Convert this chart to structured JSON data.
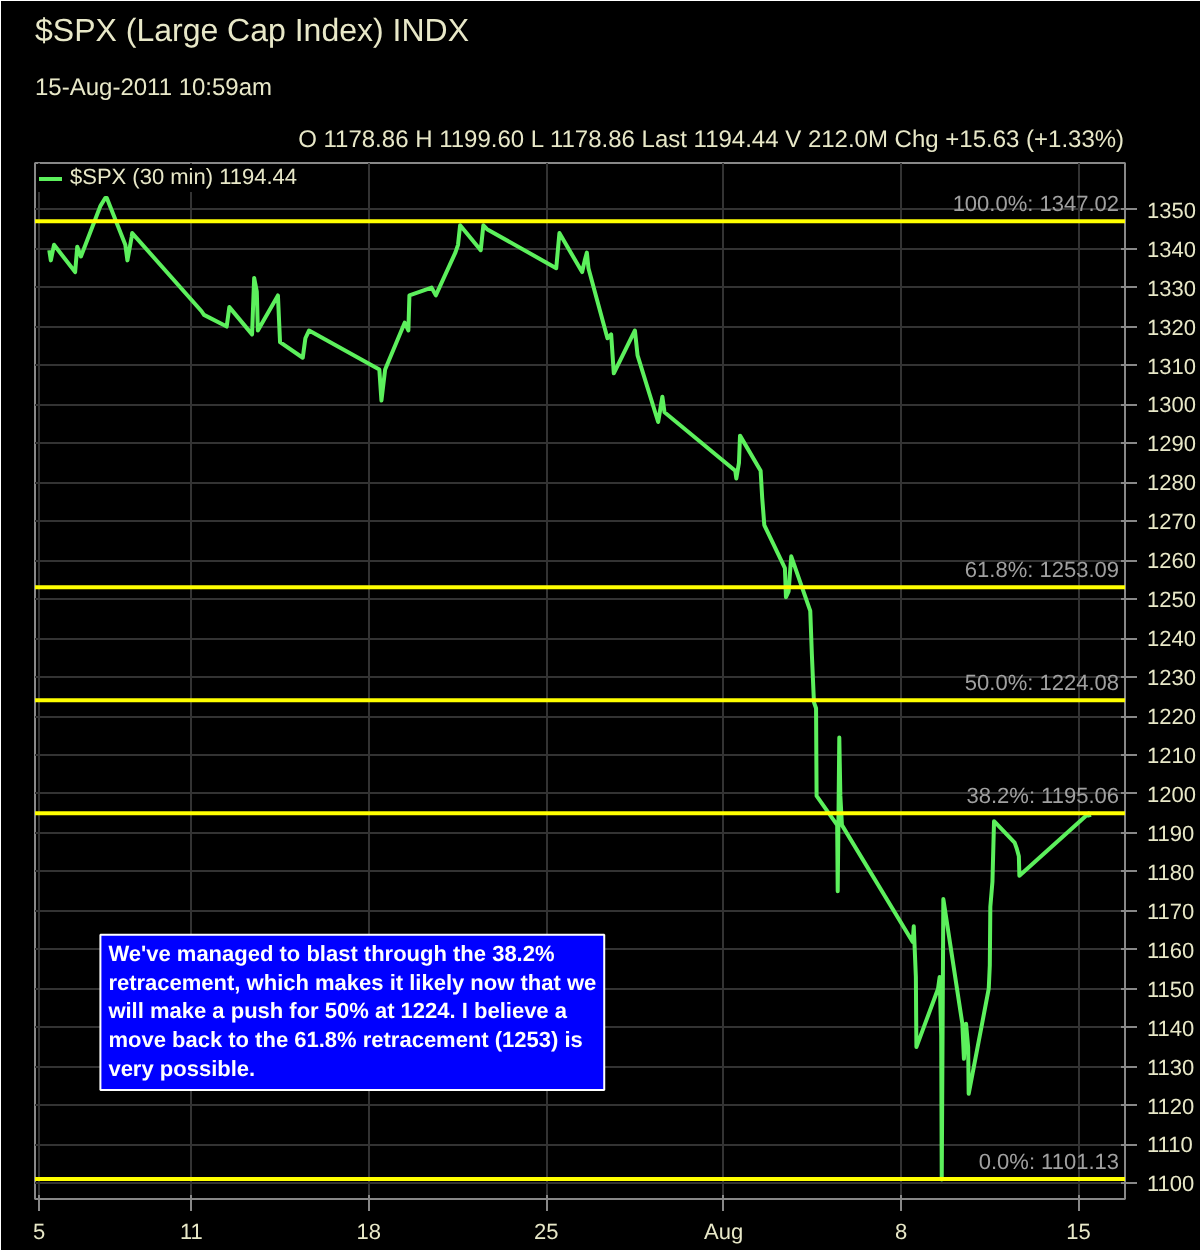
{
  "chart_data": {
    "type": "line",
    "title": "$SPX (Large Cap Index) INDX",
    "subtitle": "15-Aug-2011 10:59am",
    "annotations": [
      "O 1178.86 H 1199.60 L 1178.86 Last 1194.44 V 212.0M Chg +15.63 (+1.33%)",
      "We've managed to blast through the 38.2% retracement, which makes it likely now that we will make a push for 50% at 1224. I believe a move back to the 61.8% retracement (1253) is very possible."
    ],
    "series": [
      {
        "name": "$SPX (30 min) 1194.44",
        "color": "#5cf05c",
        "x": [
          "2011-07-05T09:30",
          "2011-07-05T11:00",
          "2011-07-05T14:00",
          "2011-07-06T10:00",
          "2011-07-06T12:00",
          "2011-07-06T15:30",
          "2011-07-07T10:00",
          "2011-07-07T14:30",
          "2011-07-07T16:00",
          "2011-07-08T09:30",
          "2011-07-08T11:30",
          "2011-07-08T15:30",
          "2011-07-08T16:00",
          "2011-07-11T09:30",
          "2011-07-11T12:00",
          "2011-07-12T09:30",
          "2011-07-12T12:00",
          "2011-07-13T09:30",
          "2011-07-13T11:30",
          "2011-07-13T14:00",
          "2011-07-13T15:00",
          "2011-07-14T10:00",
          "2011-07-14T12:00",
          "2011-07-15T09:30",
          "2011-07-15T12:00",
          "2011-07-15T15:30",
          "2011-07-18T10:00",
          "2011-07-18T12:00",
          "2011-07-18T15:30",
          "2011-07-19T10:00",
          "2011-07-19T13:30",
          "2011-07-19T14:30",
          "2011-07-20T11:30",
          "2011-07-20T15:30",
          "2011-07-21T10:00",
          "2011-07-21T12:30",
          "2011-07-21T14:30",
          "2011-07-22T10:00",
          "2011-07-22T12:30",
          "2011-07-22T16:00",
          "2011-07-25T09:30",
          "2011-07-25T12:30",
          "2011-07-26T10:00",
          "2011-07-26T12:30",
          "2011-07-26T14:30",
          "2011-07-26T16:00",
          "2011-07-27T10:00",
          "2011-07-27T13:30",
          "2011-07-27T16:00",
          "2011-07-28T12:00",
          "2011-07-28T14:30",
          "2011-07-29T10:00",
          "2011-07-29T14:00",
          "2011-07-29T16:00",
          "2011-08-01T11:00",
          "2011-08-01T12:00",
          "2011-08-01T14:30",
          "2011-08-01T15:30",
          "2011-08-02T11:00",
          "2011-08-02T12:30",
          "2011-08-02T14:30",
          "2011-08-03T10:00",
          "2011-08-03T11:00",
          "2011-08-03T13:30",
          "2011-08-03T16:00",
          "2011-08-04T10:00",
          "2011-08-04T11:30",
          "2011-08-04T13:30",
          "2011-08-04T15:30",
          "2011-08-04T16:00",
          "2011-08-05T11:30",
          "2011-08-05T12:00",
          "2011-08-05T13:30",
          "2011-08-05T14:30",
          "2011-08-05T16:00",
          "2011-08-08T11:00",
          "2011-08-08T12:00",
          "2011-08-08T14:00",
          "2011-08-08T14:30",
          "2011-08-09T11:00",
          "2011-08-09T12:30",
          "2011-08-09T14:00",
          "2011-08-09T14:30",
          "2011-08-09T16:00",
          "2011-08-10T10:00",
          "2011-08-10T11:30",
          "2011-08-10T13:30",
          "2011-08-10T15:30",
          "2011-08-10T16:00",
          "2011-08-11T11:00",
          "2011-08-11T12:00",
          "2011-08-11T12:30",
          "2011-08-11T14:30",
          "2011-08-11T16:00",
          "2011-08-12T11:30",
          "2011-08-12T13:30",
          "2011-08-12T15:30",
          "2011-08-12T16:00",
          "2011-08-15T09:30",
          "2011-08-15T10:30"
        ],
        "values": [
          1339.6,
          1337,
          1341,
          1334,
          1340.5,
          1338,
          1351,
          1353,
          1353,
          1341,
          1337,
          1343,
          1344,
          1324,
          1323,
          1320,
          1325,
          1318,
          1332.5,
          1329,
          1319,
          1328,
          1316,
          1312,
          1317,
          1319,
          1309,
          1301,
          1309,
          1321,
          1319,
          1328,
          1330,
          1328,
          1339,
          1341,
          1346,
          1339.6,
          1346,
          1345,
          1335,
          1344,
          1334,
          1337,
          1339,
          1335,
          1317,
          1318,
          1308,
          1319,
          1312.6,
          1295.5,
          1302,
          1298,
          1283,
          1281,
          1285,
          1292,
          1283,
          1276,
          1269,
          1258,
          1250.5,
          1252,
          1261,
          1247,
          1236,
          1223.5,
          1222,
          1199.5,
          1192,
          1175,
          1214.5,
          1199.5,
          1192,
          1162,
          1166,
          1153,
          1135,
          1150,
          1153,
          1138,
          1101,
          1173,
          1141,
          1132,
          1141,
          1135,
          1123,
          1150,
          1156,
          1171,
          1177.5,
          1193,
          1187.5,
          1186,
          1184,
          1179,
          1195,
          1194
        ]
      }
    ],
    "xlim": [
      "2011-07-04T20:00",
      "2011-08-16T20:00"
    ],
    "ylim": [
      1096,
      1362
    ],
    "xticks": [
      {
        "value": "2011-07-05",
        "label": "5"
      },
      {
        "value": "2011-07-11",
        "label": "11"
      },
      {
        "value": "2011-07-18",
        "label": "18"
      },
      {
        "value": "2011-07-25",
        "label": "25"
      },
      {
        "value": "2011-08-01",
        "label": "Aug"
      },
      {
        "value": "2011-08-08",
        "label": "8"
      },
      {
        "value": "2011-08-15",
        "label": "15"
      }
    ],
    "yticks": [
      1100,
      1110,
      1120,
      1130,
      1140,
      1150,
      1160,
      1170,
      1180,
      1190,
      1200,
      1210,
      1220,
      1230,
      1240,
      1250,
      1260,
      1270,
      1280,
      1290,
      1300,
      1310,
      1320,
      1330,
      1340,
      1350
    ],
    "ref_lines": [
      {
        "axis": "y",
        "value": 1347.02,
        "label": "100.0%: 1347.02",
        "color": "#ffff00"
      },
      {
        "axis": "y",
        "value": 1253.09,
        "label": "61.8%: 1253.09",
        "color": "#ffff00"
      },
      {
        "axis": "y",
        "value": 1224.08,
        "label": "50.0%: 1224.08",
        "color": "#ffff00"
      },
      {
        "axis": "y",
        "value": 1195.06,
        "label": "38.2%: 1195.06",
        "color": "#ffff00"
      },
      {
        "axis": "y",
        "value": 1101.13,
        "label": "0.0%: 1101.13",
        "color": "#ffff00"
      }
    ],
    "grid": true,
    "legend": "top left"
  }
}
